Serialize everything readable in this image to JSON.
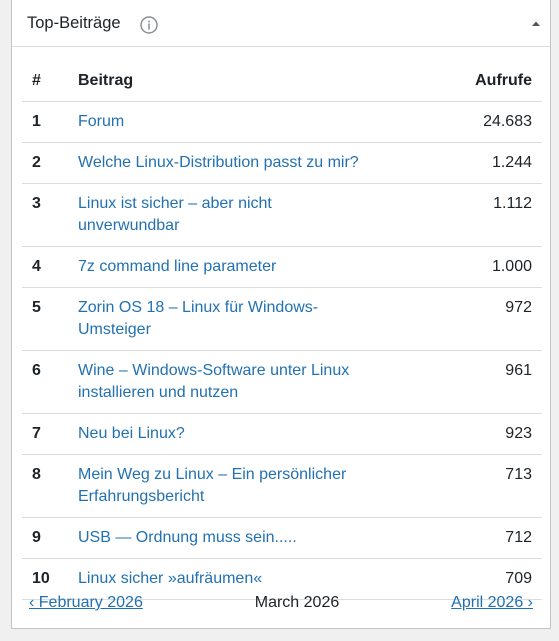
{
  "widget": {
    "title": "Top-Beiträge",
    "table": {
      "header": [
        "#",
        "Beitrag",
        "Aufrufe"
      ],
      "rows": [
        [
          "1",
          "Forum",
          "24.683"
        ],
        [
          "2",
          "Welche Linux-Distribution passt zu mir?",
          "1.244"
        ],
        [
          "3",
          "Linux ist sicher – aber nicht unverwundbar",
          "1.112"
        ],
        [
          "4",
          "7z command line parameter",
          "1.000"
        ],
        [
          "5",
          "Zorin OS 18 – Linux für Windows-Umsteiger",
          "972"
        ],
        [
          "6",
          "Wine – Windows-Software unter Linux installieren und nutzen",
          "961"
        ],
        [
          "7",
          "Neu bei Linux?",
          "923"
        ],
        [
          "8",
          "Mein Weg zu Linux – Ein persönlicher Erfahrungsbericht",
          "713"
        ],
        [
          "9",
          "USB — Ordnung muss sein.....",
          "712"
        ],
        [
          "10",
          "Linux sicher »aufräumen«",
          "709"
        ]
      ]
    },
    "nav": {
      "previous": "‹ February 2026",
      "current": "March 2026",
      "next": "April 2026 ›"
    }
  }
}
